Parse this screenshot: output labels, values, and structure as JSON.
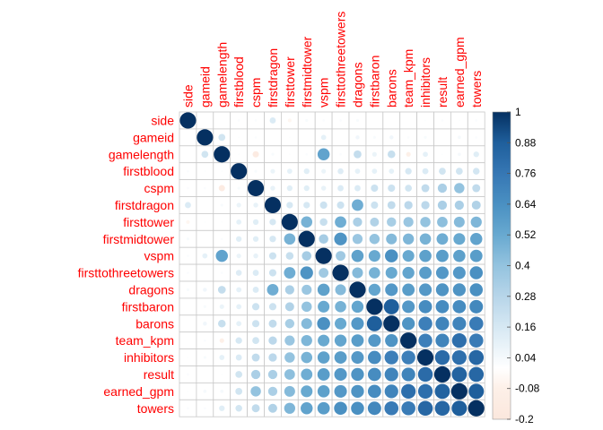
{
  "chart_data": {
    "type": "heatmap",
    "style": "corrplot-circle",
    "shape": "lower-triangle-emphasis",
    "variables": [
      "side",
      "gameid",
      "gamelength",
      "firstblood",
      "cspm",
      "firstdragon",
      "firsttower",
      "firstmidtower",
      "vspm",
      "firsttothreetowers",
      "dragons",
      "firstbaron",
      "barons",
      "team_kpm",
      "inhibitors",
      "result",
      "earned_gpm",
      "towers"
    ],
    "matrix": [
      [
        1.0,
        0.0,
        0.0,
        0.02,
        0.02,
        0.14,
        -0.05,
        0.03,
        0.02,
        0.02,
        0.03,
        0.0,
        0.0,
        0.0,
        0.01,
        0.02,
        0.01,
        0.02
      ],
      [
        0.0,
        1.0,
        0.18,
        0.01,
        0.02,
        0.0,
        0.01,
        0.0,
        0.1,
        0.0,
        0.06,
        0.03,
        0.06,
        0.02,
        0.03,
        0.0,
        0.04,
        0.02
      ],
      [
        0.0,
        0.18,
        1.0,
        0.01,
        -0.15,
        0.03,
        0.01,
        0.02,
        0.55,
        0.02,
        0.23,
        0.08,
        0.22,
        -0.08,
        0.1,
        0.01,
        0.04,
        0.12
      ],
      [
        0.02,
        0.01,
        0.01,
        1.0,
        0.03,
        0.08,
        0.1,
        0.12,
        0.08,
        0.13,
        0.1,
        0.1,
        0.1,
        0.16,
        0.14,
        0.18,
        0.18,
        0.17
      ],
      [
        0.02,
        0.02,
        -0.15,
        0.03,
        1.0,
        0.09,
        0.12,
        0.12,
        0.09,
        0.14,
        0.14,
        0.2,
        0.2,
        0.18,
        0.24,
        0.32,
        0.4,
        0.24
      ],
      [
        0.14,
        0.0,
        0.03,
        0.08,
        0.09,
        1.0,
        0.16,
        0.16,
        0.2,
        0.2,
        0.5,
        0.2,
        0.24,
        0.26,
        0.26,
        0.32,
        0.32,
        0.3
      ],
      [
        -0.05,
        0.01,
        0.01,
        0.1,
        0.12,
        0.16,
        1.0,
        0.48,
        0.22,
        0.5,
        0.32,
        0.3,
        0.33,
        0.38,
        0.4,
        0.42,
        0.44,
        0.46
      ],
      [
        0.03,
        0.0,
        0.02,
        0.12,
        0.12,
        0.16,
        0.48,
        1.0,
        0.34,
        0.62,
        0.38,
        0.4,
        0.44,
        0.46,
        0.48,
        0.5,
        0.52,
        0.55
      ],
      [
        0.02,
        0.1,
        0.55,
        0.08,
        0.09,
        0.2,
        0.22,
        0.34,
        1.0,
        0.36,
        0.56,
        0.52,
        0.64,
        0.52,
        0.56,
        0.58,
        0.56,
        0.58
      ],
      [
        0.02,
        0.0,
        0.02,
        0.13,
        0.14,
        0.2,
        0.5,
        0.62,
        0.36,
        1.0,
        0.44,
        0.48,
        0.52,
        0.54,
        0.58,
        0.6,
        0.6,
        0.64
      ],
      [
        0.03,
        0.06,
        0.23,
        0.1,
        0.14,
        0.5,
        0.32,
        0.38,
        0.56,
        0.44,
        1.0,
        0.54,
        0.6,
        0.58,
        0.6,
        0.62,
        0.62,
        0.64
      ],
      [
        0.0,
        0.03,
        0.08,
        0.1,
        0.2,
        0.2,
        0.3,
        0.4,
        0.52,
        0.48,
        0.54,
        1.0,
        0.88,
        0.6,
        0.66,
        0.66,
        0.66,
        0.68
      ],
      [
        0.0,
        0.06,
        0.22,
        0.1,
        0.2,
        0.24,
        0.33,
        0.44,
        0.64,
        0.52,
        0.6,
        0.88,
        1.0,
        0.62,
        0.72,
        0.7,
        0.7,
        0.74
      ],
      [
        0.0,
        0.02,
        -0.08,
        0.16,
        0.18,
        0.26,
        0.38,
        0.46,
        0.52,
        0.54,
        0.58,
        0.6,
        0.62,
        1.0,
        0.72,
        0.7,
        0.8,
        0.74
      ],
      [
        0.01,
        0.03,
        0.1,
        0.14,
        0.24,
        0.26,
        0.4,
        0.48,
        0.56,
        0.58,
        0.6,
        0.66,
        0.72,
        0.72,
        1.0,
        0.82,
        0.8,
        0.84
      ],
      [
        0.02,
        0.0,
        0.01,
        0.18,
        0.32,
        0.32,
        0.42,
        0.5,
        0.58,
        0.6,
        0.62,
        0.66,
        0.7,
        0.7,
        0.82,
        1.0,
        0.86,
        0.84
      ],
      [
        0.01,
        0.04,
        0.04,
        0.18,
        0.4,
        0.32,
        0.44,
        0.52,
        0.56,
        0.6,
        0.62,
        0.66,
        0.7,
        0.8,
        0.8,
        0.86,
        1.0,
        0.88
      ],
      [
        0.02,
        0.02,
        0.12,
        0.17,
        0.24,
        0.3,
        0.46,
        0.55,
        0.58,
        0.64,
        0.64,
        0.68,
        0.74,
        0.74,
        0.84,
        0.84,
        0.88,
        1.0
      ]
    ],
    "colorbar": {
      "ticks": [
        "1",
        "0.88",
        "0.76",
        "0.64",
        "0.52",
        "0.4",
        "0.28",
        "0.16",
        "0.04",
        "-0.08",
        "-0.2"
      ],
      "range": [
        -0.2,
        1.0
      ],
      "palette": [
        [
          -0.2,
          "#fbe7dd"
        ],
        [
          -0.08,
          "#fdf0e8"
        ],
        [
          0.0,
          "#ffffff"
        ],
        [
          0.16,
          "#d6e8f3"
        ],
        [
          0.28,
          "#b7d5e9"
        ],
        [
          0.4,
          "#94c3df"
        ],
        [
          0.52,
          "#68a9d0"
        ],
        [
          0.64,
          "#4a90c2"
        ],
        [
          0.76,
          "#3677b4"
        ],
        [
          0.88,
          "#1f5f9c"
        ],
        [
          1.0,
          "#053061"
        ]
      ]
    },
    "title": "",
    "xlabel": "",
    "ylabel": ""
  }
}
